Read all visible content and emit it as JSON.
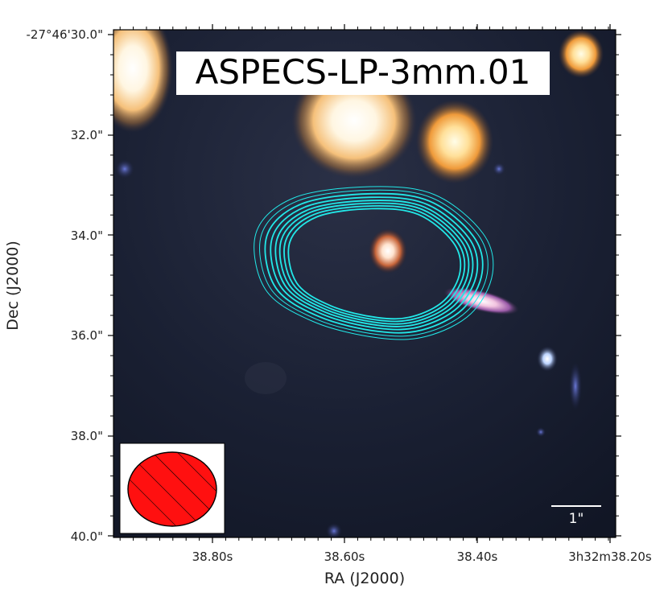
{
  "title": "ASPECS-LP-3mm.01",
  "axes": {
    "xlabel": "RA (J2000)",
    "ylabel": "Dec (J2000)",
    "x_ticks": [
      "38.80s",
      "38.60s",
      "38.40s",
      "3h32m38.20s"
    ],
    "y_ticks": [
      "-27°46'30.0\"",
      "32.0\"",
      "34.0\"",
      "36.0\"",
      "38.0\"",
      "40.0\""
    ]
  },
  "scale_bar": {
    "label": "1\""
  },
  "colors": {
    "background": "#151a2a",
    "contour": "#22e8e8",
    "beam_fill": "#ff1010",
    "frame": "#000000"
  }
}
